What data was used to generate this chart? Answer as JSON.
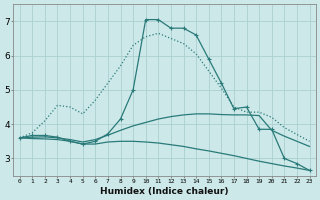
{
  "xlabel": "Humidex (Indice chaleur)",
  "background_color": "#cce8e8",
  "grid_color": "#aad0d0",
  "line_color": "#2a7a7a",
  "xlim": [
    -0.5,
    23.5
  ],
  "ylim": [
    2.5,
    7.5
  ],
  "yticks": [
    3,
    4,
    5,
    6,
    7
  ],
  "xtick_labels": [
    "0",
    "1",
    "2",
    "3",
    "4",
    "5",
    "6",
    "7",
    "8",
    "9",
    "10",
    "11",
    "12",
    "13",
    "14",
    "15",
    "16",
    "17",
    "18",
    "19",
    "20",
    "21",
    "22",
    "23"
  ],
  "xtick_positions": [
    0,
    1,
    2,
    3,
    4,
    5,
    6,
    7,
    8,
    9,
    10,
    11,
    12,
    13,
    14,
    15,
    16,
    17,
    18,
    19,
    20,
    21,
    22,
    23
  ],
  "lines": [
    {
      "x": [
        0,
        1,
        2,
        3,
        4,
        5,
        6,
        7,
        8,
        9,
        10,
        11,
        12,
        13,
        14,
        15,
        16,
        17,
        18,
        19,
        20,
        21,
        22,
        23
      ],
      "y": [
        3.6,
        3.67,
        3.67,
        3.62,
        3.5,
        3.42,
        3.5,
        3.72,
        4.15,
        5.0,
        7.05,
        7.05,
        6.8,
        6.8,
        6.6,
        5.9,
        5.2,
        4.45,
        4.5,
        3.85,
        3.85,
        3.0,
        2.85,
        2.65
      ],
      "style": "-",
      "marker": "+",
      "markersize": 3.5,
      "linewidth": 0.9
    },
    {
      "x": [
        0,
        1,
        2,
        3,
        4,
        5,
        6,
        7,
        8,
        9,
        10,
        11,
        12,
        13,
        14,
        15,
        16,
        17,
        18,
        19,
        20,
        21,
        22,
        23
      ],
      "y": [
        3.6,
        3.75,
        4.1,
        4.55,
        4.5,
        4.3,
        4.7,
        5.2,
        5.7,
        6.3,
        6.55,
        6.65,
        6.5,
        6.35,
        6.05,
        5.55,
        5.05,
        4.5,
        4.35,
        4.35,
        4.2,
        3.9,
        3.7,
        3.5
      ],
      "style": ":",
      "marker": null,
      "markersize": 0,
      "linewidth": 0.9
    },
    {
      "x": [
        0,
        1,
        2,
        3,
        4,
        5,
        6,
        7,
        8,
        9,
        10,
        11,
        12,
        13,
        14,
        15,
        16,
        17,
        18,
        19,
        20,
        21,
        22,
        23
      ],
      "y": [
        3.6,
        3.62,
        3.63,
        3.6,
        3.55,
        3.48,
        3.55,
        3.68,
        3.82,
        3.95,
        4.05,
        4.15,
        4.22,
        4.27,
        4.3,
        4.3,
        4.28,
        4.27,
        4.27,
        4.25,
        3.82,
        3.65,
        3.5,
        3.35
      ],
      "style": "-",
      "marker": null,
      "markersize": 0,
      "linewidth": 0.9
    },
    {
      "x": [
        0,
        1,
        2,
        3,
        4,
        5,
        6,
        7,
        8,
        9,
        10,
        11,
        12,
        13,
        14,
        15,
        16,
        17,
        18,
        19,
        20,
        21,
        22,
        23
      ],
      "y": [
        3.6,
        3.58,
        3.57,
        3.55,
        3.5,
        3.42,
        3.42,
        3.48,
        3.5,
        3.5,
        3.48,
        3.45,
        3.4,
        3.35,
        3.28,
        3.22,
        3.15,
        3.08,
        3.0,
        2.92,
        2.85,
        2.78,
        2.72,
        2.65
      ],
      "style": "-",
      "marker": null,
      "markersize": 0,
      "linewidth": 0.9
    }
  ]
}
